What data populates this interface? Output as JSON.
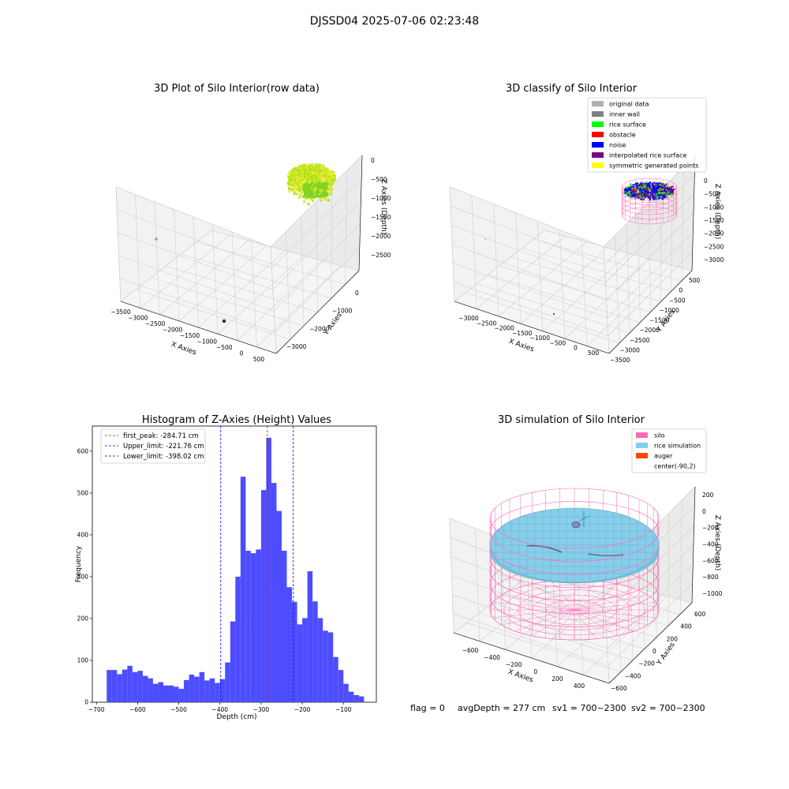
{
  "figure_title": "DJSSD04 2025-07-06 02:23:48",
  "footer": {
    "flag": "flag = 0",
    "avg_depth": "avgDepth = 277 cm",
    "sv1": "sv1 = 700~2300",
    "sv2": "sv2 = 700~2300"
  },
  "colors": {
    "hist_bar": "#4d4dff",
    "first_peak_line": "#ff0000",
    "limit_line": "#0000ff",
    "silo_wire": "#ff69b4",
    "rice_simulation": "#87ceeb",
    "auger": "#ff4500",
    "rice_surface_raw": "#c8e61e"
  },
  "chart_data": [
    {
      "type": "scatter",
      "projection": "3d",
      "title": "3D Plot of Silo Interior(row data)",
      "xlabel": "X Axies",
      "ylabel": "Y Axies",
      "zlabel": "Z Axies (Depth)",
      "x_ticks": [
        "−3500",
        "−3000",
        "−2500",
        "−2000",
        "−1500",
        "−1000",
        "−500",
        "0",
        "500"
      ],
      "y_ticks": [
        "0",
        "−1000",
        "−2000",
        "−3000"
      ],
      "z_ticks": [
        "0",
        "−500",
        "−1000",
        "−1500",
        "−2000",
        "−2500"
      ],
      "xlim": [
        -3500,
        500
      ],
      "ylim": [
        -3000,
        0
      ],
      "zlim": [
        -2500,
        0
      ],
      "grid": true
    },
    {
      "type": "scatter",
      "projection": "3d",
      "title": "3D classify of Silo Interior",
      "xlabel": "X Axies",
      "ylabel": "Y Axies",
      "zlabel": "Z Axies (Depth)",
      "x_ticks": [
        "−3000",
        "−2500",
        "−2000",
        "−1500",
        "−1000",
        "−500",
        "0",
        "500"
      ],
      "y_ticks": [
        "500",
        "0",
        "−500",
        "−1000",
        "−1500",
        "−2000",
        "−2500",
        "−3000",
        "−3500"
      ],
      "z_ticks": [
        "0",
        "−500",
        "−1000",
        "−1500",
        "−2000",
        "−2500",
        "−3000"
      ],
      "legend": {
        "placement": "top-right",
        "entries": [
          {
            "label": "original data",
            "color": "#b0b0b0"
          },
          {
            "label": "inner wall",
            "color": "#808080"
          },
          {
            "label": "rice surface",
            "color": "#00ff00"
          },
          {
            "label": "obstacle",
            "color": "#ff0000"
          },
          {
            "label": "noise",
            "color": "#0000ff"
          },
          {
            "label": "interpolated rice surface",
            "color": "#800080"
          },
          {
            "label": "symmetric generated points",
            "color": "#ffff00"
          }
        ]
      },
      "grid": true
    },
    {
      "type": "bar",
      "title": "Histogram of Z-Axies (Height) Values",
      "xlabel": "Depth (cm)",
      "ylabel": "Frequency",
      "xlim": [
        -710,
        -20
      ],
      "ylim": [
        0,
        660
      ],
      "x_ticks": [
        -700,
        -600,
        -500,
        -400,
        -300,
        -200,
        -100
      ],
      "y_ticks": [
        0,
        100,
        200,
        300,
        400,
        500,
        600
      ],
      "bin_start": -675,
      "bin_width": 12.5,
      "values": [
        77,
        77,
        67,
        78,
        87,
        72,
        75,
        63,
        57,
        44,
        48,
        40,
        40,
        37,
        32,
        53,
        66,
        61,
        72,
        52,
        57,
        46,
        55,
        95,
        193,
        300,
        539,
        362,
        356,
        365,
        507,
        632,
        524,
        457,
        362,
        275,
        240,
        186,
        201,
        313,
        241,
        201,
        171,
        167,
        108,
        77,
        44,
        25,
        17,
        14
      ],
      "lines": [
        {
          "label": "first_peak: -284.71 cm",
          "value": -284.71,
          "color": "#ff0000"
        },
        {
          "label": "Upper_limit: -221.76 cm",
          "value": -221.76,
          "color": "#0000ff"
        },
        {
          "label": "Lower_limit: -398.02 cm",
          "value": -398.02,
          "color": "#0000ff"
        }
      ],
      "legend": {
        "placement": "top-left"
      }
    },
    {
      "type": "scatter",
      "projection": "3d",
      "title": "3D simulation of Silo Interior",
      "xlabel": "X Axies",
      "ylabel": "Y Axies",
      "zlabel": "Z Axies (Depth)",
      "x_ticks": [
        "−600",
        "−400",
        "−200",
        "0",
        "200",
        "400"
      ],
      "y_ticks": [
        "600",
        "400",
        "200",
        "0",
        "−200",
        "−400",
        "−600"
      ],
      "z_ticks": [
        "200",
        "0",
        "−200",
        "−400",
        "−600",
        "−800",
        "−1000"
      ],
      "legend": {
        "placement": "top-right",
        "entries": [
          {
            "label": "silo",
            "color": "#ff69b4"
          },
          {
            "label": "rice simulation",
            "color": "#87ceeb"
          },
          {
            "label": "auger",
            "color": "#ff4500"
          },
          {
            "label": "center(-90,2)",
            "color": "#ffffff"
          }
        ]
      },
      "grid": true
    }
  ]
}
